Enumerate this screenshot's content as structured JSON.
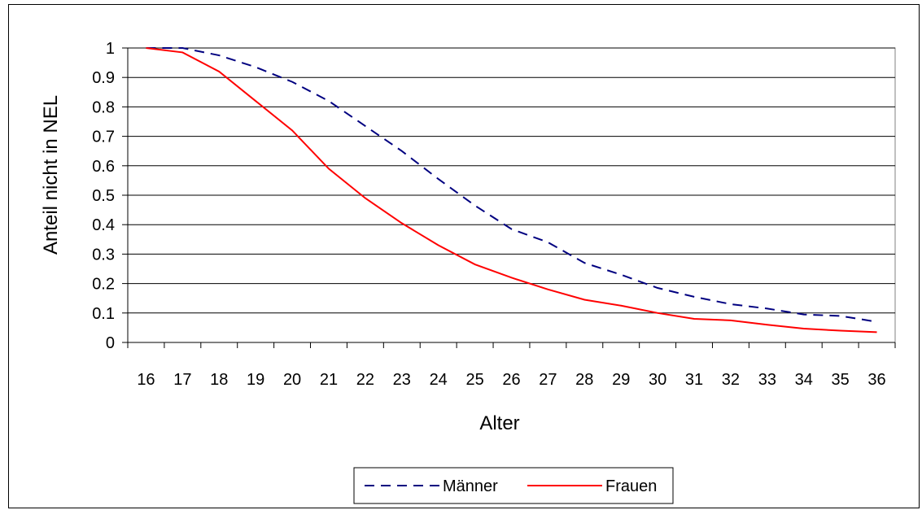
{
  "chart_data": {
    "type": "line",
    "xlabel": "Alter",
    "ylabel": "Anteil nicht in NEL",
    "x": [
      16,
      17,
      18,
      19,
      20,
      21,
      22,
      23,
      24,
      25,
      26,
      27,
      28,
      29,
      30,
      31,
      32,
      33,
      34,
      35,
      36
    ],
    "yticks": [
      "0",
      "0.1",
      "0.2",
      "0.3",
      "0.4",
      "0.5",
      "0.6",
      "0.7",
      "0.8",
      "0.9",
      "1"
    ],
    "ylim": [
      0,
      1
    ],
    "grid": "horizontal",
    "legend_position": "bottom",
    "series": [
      {
        "name": "Männer",
        "color": "#000080",
        "style": "dashed",
        "values": [
          1.0,
          1.0,
          0.975,
          0.935,
          0.885,
          0.82,
          0.735,
          0.65,
          0.555,
          0.465,
          0.385,
          0.34,
          0.27,
          0.23,
          0.185,
          0.155,
          0.13,
          0.115,
          0.095,
          0.09,
          0.07
        ]
      },
      {
        "name": "Frauen",
        "color": "#ff0000",
        "style": "solid",
        "values": [
          1.0,
          0.985,
          0.92,
          0.82,
          0.72,
          0.59,
          0.49,
          0.405,
          0.33,
          0.265,
          0.22,
          0.18,
          0.145,
          0.125,
          0.1,
          0.08,
          0.075,
          0.06,
          0.047,
          0.04,
          0.035
        ]
      }
    ]
  }
}
